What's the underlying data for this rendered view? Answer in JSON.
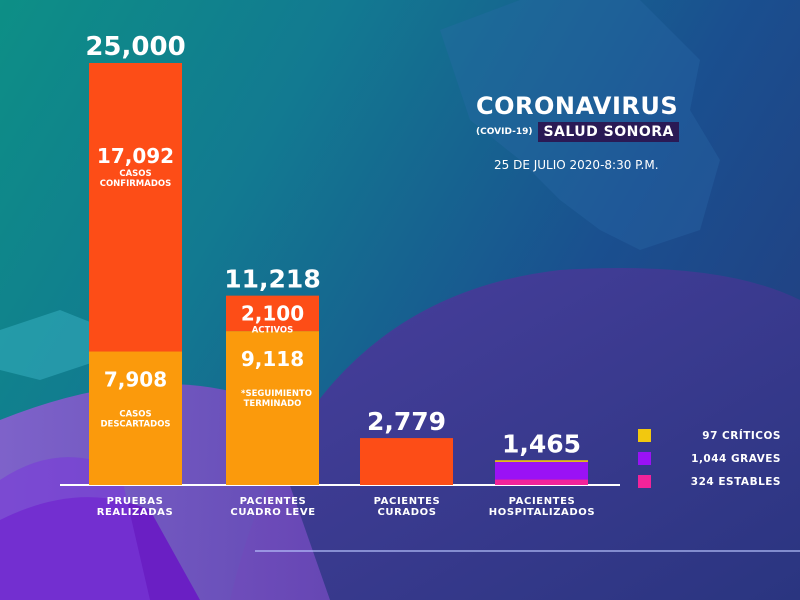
{
  "header": {
    "title": "CORONAVIRUS",
    "covid_tag": "(COVID-19)",
    "org": "SALUD SONORA",
    "date": "25 DE JULIO 2020-8:30 P.M."
  },
  "colors": {
    "red": "#fd4d17",
    "orange": "#fb9a0c",
    "yellow": "#f2c80f",
    "purple": "#9a12f5",
    "magenta": "#f2239a",
    "white": "#ffffff"
  },
  "chart_data": {
    "type": "bar",
    "categories": [
      "PRUEBAS\nREALIZADAS",
      "PACIENTES\nCUADRO LEVE",
      "PACIENTES\nCURADOS",
      "PACIENTES\nHOSPITALIZADOS"
    ],
    "totals": [
      "25,000",
      "11,218",
      "2,779",
      "1,465"
    ],
    "total_values": [
      25000,
      11218,
      2779,
      1465
    ],
    "ylim": [
      0,
      25000
    ],
    "segments": [
      [
        {
          "value": 7908,
          "label": "7,908",
          "caption": [
            "CASOS",
            "DESCARTADOS"
          ],
          "color": "orange"
        },
        {
          "value": 17092,
          "label": "17,092",
          "caption": [
            "CASOS",
            "CONFIRMADOS"
          ],
          "color": "red"
        }
      ],
      [
        {
          "value": 9118,
          "label": "9,118",
          "caption": [
            "*SEGUIMIENTO",
            "TERMINADO"
          ],
          "color": "orange"
        },
        {
          "value": 2100,
          "label": "2,100",
          "caption": [
            "ACTIVOS"
          ],
          "color": "red"
        }
      ],
      [
        {
          "value": 2779,
          "color": "red"
        }
      ],
      [
        {
          "value": 324,
          "color": "magenta"
        },
        {
          "value": 1044,
          "color": "purple"
        },
        {
          "value": 97,
          "color": "yellow"
        }
      ]
    ],
    "legend": [
      {
        "label": "97 CRÍTICOS",
        "color": "yellow"
      },
      {
        "label": "1,044 GRAVES",
        "color": "purple"
      },
      {
        "label": "324 ESTABLES",
        "color": "magenta"
      }
    ],
    "legend_position": "right"
  }
}
